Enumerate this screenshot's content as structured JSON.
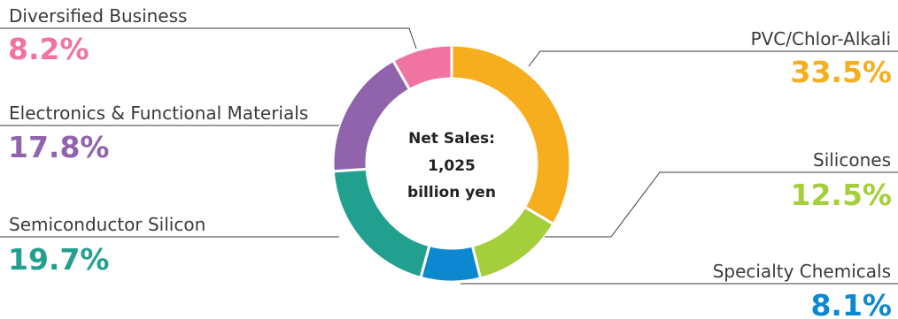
{
  "chart_data": {
    "type": "pie",
    "donut": true,
    "center_label": [
      "Net Sales:",
      "1,025",
      "billion yen"
    ],
    "slices": [
      {
        "label": "PVC/Chlor-Alkali",
        "value": 33.5,
        "display": "33.5%",
        "color": "#F7AE1E"
      },
      {
        "label": "Silicones",
        "value": 12.5,
        "display": "12.5%",
        "color": "#A5CF3A"
      },
      {
        "label": "Specialty Chemicals",
        "value": 8.1,
        "display": "8.1%",
        "color": "#0B88CF"
      },
      {
        "label": "Semiconductor Silicon",
        "value": 19.7,
        "display": "19.7%",
        "color": "#22A08F"
      },
      {
        "label": "Electronics & Functional Materials",
        "value": 17.8,
        "display": "17.8%",
        "color": "#8F64AC"
      },
      {
        "label": "Diversified Business",
        "value": 8.2,
        "display": "8.2%",
        "color": "#F073A1"
      }
    ]
  }
}
